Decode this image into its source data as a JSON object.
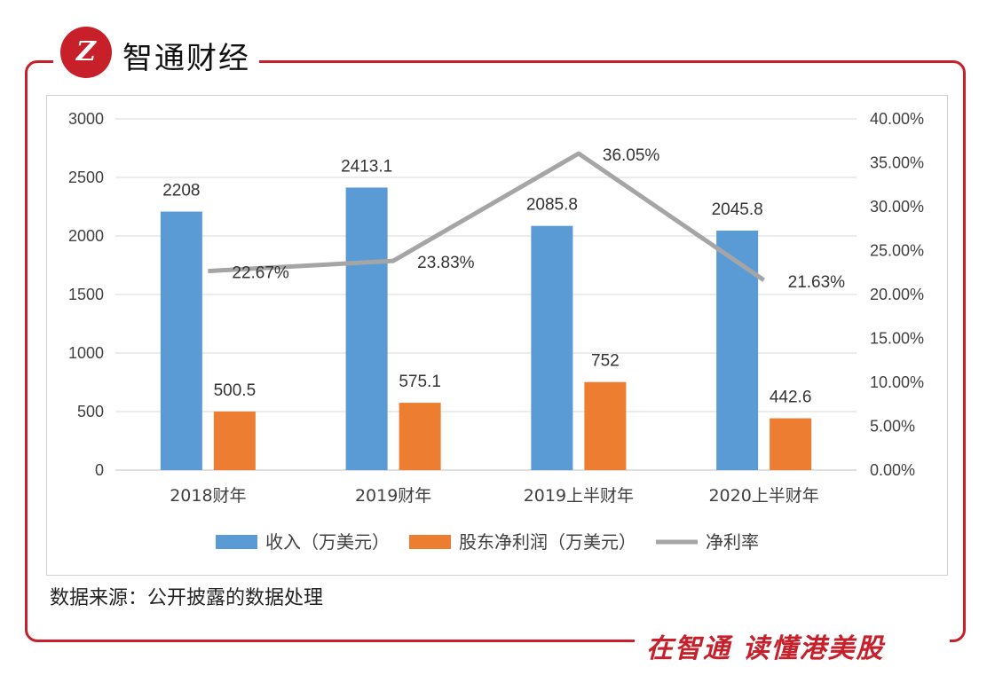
{
  "header": {
    "logo_mark": "Z",
    "logo_text": "智通财经"
  },
  "footer": {
    "slogan": "在智通 读懂港美股"
  },
  "source_note": "数据来源：公开披露的数据处理",
  "colors": {
    "brand": "#c8202a",
    "revenue": "#5b9bd5",
    "profit": "#ed7d31",
    "margin": "#a5a5a5"
  },
  "chart_data": {
    "type": "bar",
    "categories": [
      "2018财年",
      "2019财年",
      "2019上半财年",
      "2020上半财年"
    ],
    "series": [
      {
        "name": "收入（万美元）",
        "kind": "bar",
        "axis": "left",
        "values": [
          2208,
          2413.1,
          2085.8,
          2045.8
        ],
        "labels": [
          "2208",
          "2413.1",
          "2085.8",
          "2045.8"
        ]
      },
      {
        "name": "股东净利润（万美元）",
        "kind": "bar",
        "axis": "left",
        "values": [
          500.5,
          575.1,
          752,
          442.6
        ],
        "labels": [
          "500.5",
          "575.1",
          "752",
          "442.6"
        ]
      },
      {
        "name": "净利率",
        "kind": "line",
        "axis": "right",
        "values": [
          22.67,
          23.83,
          36.05,
          21.63
        ],
        "labels": [
          "22.67%",
          "23.83%",
          "36.05%",
          "21.63%"
        ]
      }
    ],
    "y_left": {
      "min": 0,
      "max": 3000,
      "ticks": [
        "0",
        "500",
        "1000",
        "1500",
        "2000",
        "2500",
        "3000"
      ]
    },
    "y_right": {
      "min": 0,
      "max": 40,
      "ticks": [
        "0.00%",
        "5.00%",
        "10.00%",
        "15.00%",
        "20.00%",
        "25.00%",
        "30.00%",
        "35.00%",
        "40.00%"
      ]
    },
    "legend": {
      "position": "bottom"
    },
    "grid": true
  }
}
